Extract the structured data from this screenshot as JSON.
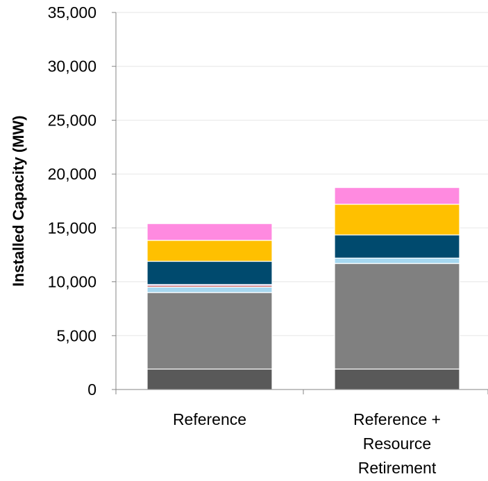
{
  "chart_data": {
    "type": "bar",
    "stacked": true,
    "title": "",
    "xlabel": "",
    "ylabel": "Installed Capacity (MW)",
    "ylim": [
      0,
      35000
    ],
    "yticks": [
      0,
      5000,
      10000,
      15000,
      20000,
      25000,
      30000,
      35000
    ],
    "ytick_labels": [
      "0",
      "5,000",
      "10,000",
      "15,000",
      "20,000",
      "25,000",
      "30,000",
      "35,000"
    ],
    "grid": true,
    "legend": "none",
    "categories": [
      [
        "Reference"
      ],
      [
        "Reference +",
        "Resource",
        "Retirement"
      ]
    ],
    "series": [
      {
        "color": "#595959",
        "values": [
          1900,
          1900
        ]
      },
      {
        "color": "#808080",
        "values": [
          7100,
          9800
        ]
      },
      {
        "color": "#a6d8f0",
        "values": [
          500,
          500
        ]
      },
      {
        "color": "#c0504d",
        "values": [
          150,
          0
        ]
      },
      {
        "color": "#7030a0",
        "values": [
          100,
          0
        ]
      },
      {
        "color": "#004a6e",
        "values": [
          2150,
          2150
        ]
      },
      {
        "color": "#ffc000",
        "values": [
          1950,
          2850
        ]
      },
      {
        "color": "#ff8ae0",
        "values": [
          1550,
          1550
        ]
      }
    ]
  }
}
